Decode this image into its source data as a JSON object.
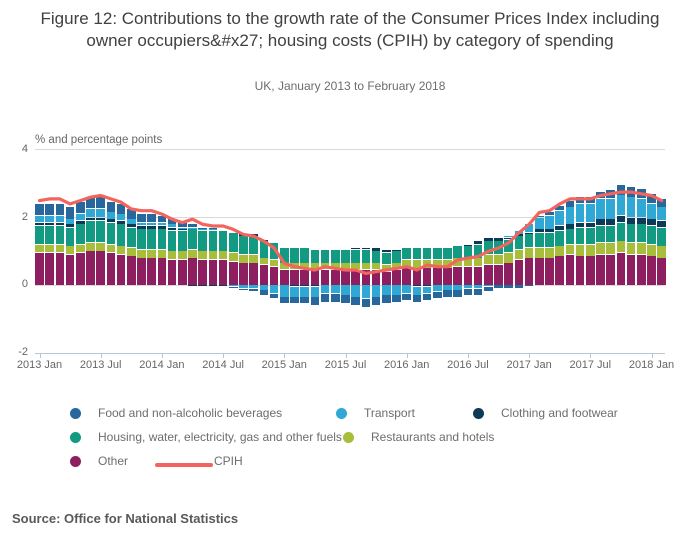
{
  "figure": {
    "title": "Figure 12: Contributions to the growth rate of the Consumer Prices Index including owner occupiers&#x27; housing costs (CPIH) by category of spending",
    "subtitle": "UK, January 2013 to February 2018",
    "unit_label": "% and percentage points",
    "source": "Source: Office for National Statistics"
  },
  "colors": {
    "grid": "#d9d9d9",
    "axis": "#b9c7d2",
    "tick_text": "#666666",
    "title_text": "#414042"
  },
  "chart_data": {
    "type": "bar",
    "stacked": true,
    "grid": true,
    "legend_position": "bottom",
    "title": "Figure 12: Contributions to the growth rate of the Consumer Prices Index including owner occupiers&#x27; housing costs (CPIH) by category of spending",
    "subtitle": "UK, January 2013 to February 2018",
    "xlabel": "",
    "ylabel": "% and percentage points",
    "ylim": [
      -2,
      4
    ],
    "yticks": [
      4,
      2,
      0,
      -2
    ],
    "xticks": [
      {
        "index": 0,
        "label": "2013 Jan"
      },
      {
        "index": 6,
        "label": "2013 Jul"
      },
      {
        "index": 12,
        "label": "2014 Jan"
      },
      {
        "index": 18,
        "label": "2014 Jul"
      },
      {
        "index": 24,
        "label": "2015 Jan"
      },
      {
        "index": 30,
        "label": "2015 Jul"
      },
      {
        "index": 36,
        "label": "2016 Jan"
      },
      {
        "index": 42,
        "label": "2016 Jul"
      },
      {
        "index": 48,
        "label": "2017 Jan"
      },
      {
        "index": 54,
        "label": "2017 Jul"
      },
      {
        "index": 60,
        "label": "2018 Jan"
      }
    ],
    "x": [
      "2013 Jan",
      "2013 Feb",
      "2013 Mar",
      "2013 Apr",
      "2013 May",
      "2013 Jun",
      "2013 Jul",
      "2013 Aug",
      "2013 Sep",
      "2013 Oct",
      "2013 Nov",
      "2013 Dec",
      "2014 Jan",
      "2014 Feb",
      "2014 Mar",
      "2014 Apr",
      "2014 May",
      "2014 Jun",
      "2014 Jul",
      "2014 Aug",
      "2014 Sep",
      "2014 Oct",
      "2014 Nov",
      "2014 Dec",
      "2015 Jan",
      "2015 Feb",
      "2015 Mar",
      "2015 Apr",
      "2015 May",
      "2015 Jun",
      "2015 Jul",
      "2015 Aug",
      "2015 Sep",
      "2015 Oct",
      "2015 Nov",
      "2015 Dec",
      "2016 Jan",
      "2016 Feb",
      "2016 Mar",
      "2016 Apr",
      "2016 May",
      "2016 Jun",
      "2016 Jul",
      "2016 Aug",
      "2016 Sep",
      "2016 Oct",
      "2016 Nov",
      "2016 Dec",
      "2017 Jan",
      "2017 Feb",
      "2017 Mar",
      "2017 Apr",
      "2017 May",
      "2017 Jun",
      "2017 Jul",
      "2017 Aug",
      "2017 Sep",
      "2017 Oct",
      "2017 Nov",
      "2017 Dec",
      "2018 Jan",
      "2018 Feb"
    ],
    "series": [
      {
        "id": "food",
        "name": "Food and non-alcoholic beverages",
        "color": "#27679c",
        "values": [
          0.35,
          0.35,
          0.35,
          0.35,
          0.35,
          0.35,
          0.35,
          0.3,
          0.3,
          0.3,
          0.25,
          0.25,
          0.2,
          0.15,
          0.15,
          0.1,
          0.05,
          0.05,
          0,
          -0.05,
          -0.05,
          -0.1,
          -0.15,
          -0.15,
          -0.2,
          -0.2,
          -0.2,
          -0.25,
          -0.25,
          -0.25,
          -0.25,
          -0.25,
          -0.25,
          -0.25,
          -0.25,
          -0.2,
          -0.2,
          -0.2,
          -0.2,
          -0.2,
          -0.2,
          -0.2,
          -0.2,
          -0.2,
          -0.15,
          -0.1,
          -0.1,
          -0.1,
          -0.05,
          0.05,
          0.1,
          0.15,
          0.2,
          0.2,
          0.2,
          0.2,
          0.25,
          0.3,
          0.3,
          0.3,
          0.3,
          0.25
        ]
      },
      {
        "id": "transport",
        "name": "Transport",
        "color": "#2fa8d5",
        "values": [
          0.2,
          0.2,
          0.2,
          0.15,
          0.2,
          0.25,
          0.25,
          0.2,
          0.2,
          0.15,
          0.1,
          0.1,
          0.1,
          0.1,
          0.05,
          0.05,
          0.05,
          0.05,
          0,
          -0.05,
          -0.1,
          -0.1,
          -0.15,
          -0.25,
          -0.35,
          -0.3,
          -0.3,
          -0.3,
          -0.25,
          -0.25,
          -0.3,
          -0.35,
          -0.4,
          -0.35,
          -0.3,
          -0.3,
          -0.25,
          -0.25,
          -0.2,
          -0.2,
          -0.15,
          -0.15,
          -0.1,
          -0.1,
          -0.05,
          0,
          0.05,
          0.1,
          0.25,
          0.35,
          0.4,
          0.45,
          0.5,
          0.55,
          0.55,
          0.6,
          0.6,
          0.6,
          0.6,
          0.55,
          0.45,
          0.4
        ]
      },
      {
        "id": "clothing",
        "name": "Clothing and footwear",
        "color": "#0c3a57",
        "values": [
          0.1,
          0.1,
          0.1,
          0.1,
          0.1,
          0.1,
          0.1,
          0.1,
          0.1,
          0.1,
          0.1,
          0.1,
          0.1,
          0.1,
          0.05,
          -0.05,
          -0.05,
          -0.05,
          -0.05,
          0,
          0.05,
          0.05,
          0.05,
          0,
          0,
          -0.05,
          -0.05,
          -0.05,
          0,
          0,
          0,
          0.05,
          0.05,
          0.1,
          0.1,
          0.05,
          0,
          -0.05,
          -0.05,
          0,
          0,
          0,
          0.05,
          0.1,
          0.1,
          0.1,
          0.05,
          0.05,
          0.05,
          0.1,
          0.1,
          0.15,
          0.15,
          0.15,
          0.15,
          0.2,
          0.2,
          0.2,
          0.2,
          0.2,
          0.2,
          0.2
        ]
      },
      {
        "id": "housing",
        "name": "Housing, water, electricity, gas and other fuels",
        "color": "#129b82",
        "values": [
          0.55,
          0.55,
          0.55,
          0.55,
          0.6,
          0.65,
          0.65,
          0.65,
          0.65,
          0.6,
          0.6,
          0.6,
          0.6,
          0.6,
          0.6,
          0.6,
          0.6,
          0.6,
          0.6,
          0.6,
          0.55,
          0.55,
          0.5,
          0.5,
          0.45,
          0.45,
          0.45,
          0.4,
          0.4,
          0.4,
          0.4,
          0.4,
          0.4,
          0.35,
          0.35,
          0.35,
          0.35,
          0.35,
          0.35,
          0.35,
          0.35,
          0.35,
          0.35,
          0.4,
          0.4,
          0.4,
          0.4,
          0.4,
          0.4,
          0.45,
          0.45,
          0.45,
          0.45,
          0.5,
          0.5,
          0.5,
          0.5,
          0.55,
          0.55,
          0.55,
          0.55,
          0.55
        ]
      },
      {
        "id": "restaurants",
        "name": "Restaurants and hotels",
        "color": "#a8bd3a",
        "values": [
          0.25,
          0.25,
          0.25,
          0.25,
          0.25,
          0.25,
          0.25,
          0.25,
          0.25,
          0.25,
          0.25,
          0.25,
          0.25,
          0.25,
          0.25,
          0.25,
          0.25,
          0.25,
          0.25,
          0.25,
          0.25,
          0.25,
          0.2,
          0.2,
          0.2,
          0.2,
          0.2,
          0.2,
          0.2,
          0.2,
          0.2,
          0.2,
          0.2,
          0.2,
          0.2,
          0.2,
          0.25,
          0.25,
          0.25,
          0.25,
          0.25,
          0.25,
          0.25,
          0.25,
          0.3,
          0.3,
          0.3,
          0.3,
          0.3,
          0.3,
          0.3,
          0.3,
          0.3,
          0.35,
          0.35,
          0.35,
          0.35,
          0.35,
          0.35,
          0.35,
          0.35,
          0.35
        ]
      },
      {
        "id": "other",
        "name": "Other",
        "color": "#8d1f60",
        "values": [
          0.95,
          0.95,
          0.95,
          0.9,
          0.95,
          1.0,
          1.0,
          0.95,
          0.9,
          0.85,
          0.8,
          0.8,
          0.8,
          0.75,
          0.75,
          0.8,
          0.75,
          0.75,
          0.75,
          0.7,
          0.65,
          0.65,
          0.6,
          0.55,
          0.45,
          0.45,
          0.45,
          0.45,
          0.45,
          0.45,
          0.45,
          0.45,
          0.45,
          0.45,
          0.4,
          0.45,
          0.5,
          0.5,
          0.5,
          0.5,
          0.5,
          0.55,
          0.55,
          0.55,
          0.6,
          0.6,
          0.65,
          0.75,
          0.8,
          0.8,
          0.8,
          0.85,
          0.9,
          0.85,
          0.85,
          0.9,
          0.9,
          0.95,
          0.9,
          0.9,
          0.85,
          0.8
        ]
      }
    ],
    "line": {
      "id": "cpih",
      "name": "CPIH",
      "color": "#f2655e",
      "values": [
        2.5,
        2.55,
        2.55,
        2.4,
        2.5,
        2.6,
        2.65,
        2.55,
        2.45,
        2.25,
        2.2,
        2.2,
        2.1,
        1.95,
        1.85,
        1.95,
        1.8,
        1.75,
        1.75,
        1.65,
        1.5,
        1.45,
        1.3,
        1.1,
        0.65,
        0.55,
        0.5,
        0.45,
        0.55,
        0.5,
        0.45,
        0.45,
        0.35,
        0.4,
        0.45,
        0.5,
        0.55,
        0.45,
        0.6,
        0.55,
        0.55,
        0.75,
        0.8,
        0.85,
        1.0,
        1.1,
        1.25,
        1.55,
        1.8,
        2.15,
        2.2,
        2.4,
        2.55,
        2.55,
        2.55,
        2.65,
        2.7,
        2.75,
        2.75,
        2.7,
        2.65,
        2.5
      ]
    }
  }
}
